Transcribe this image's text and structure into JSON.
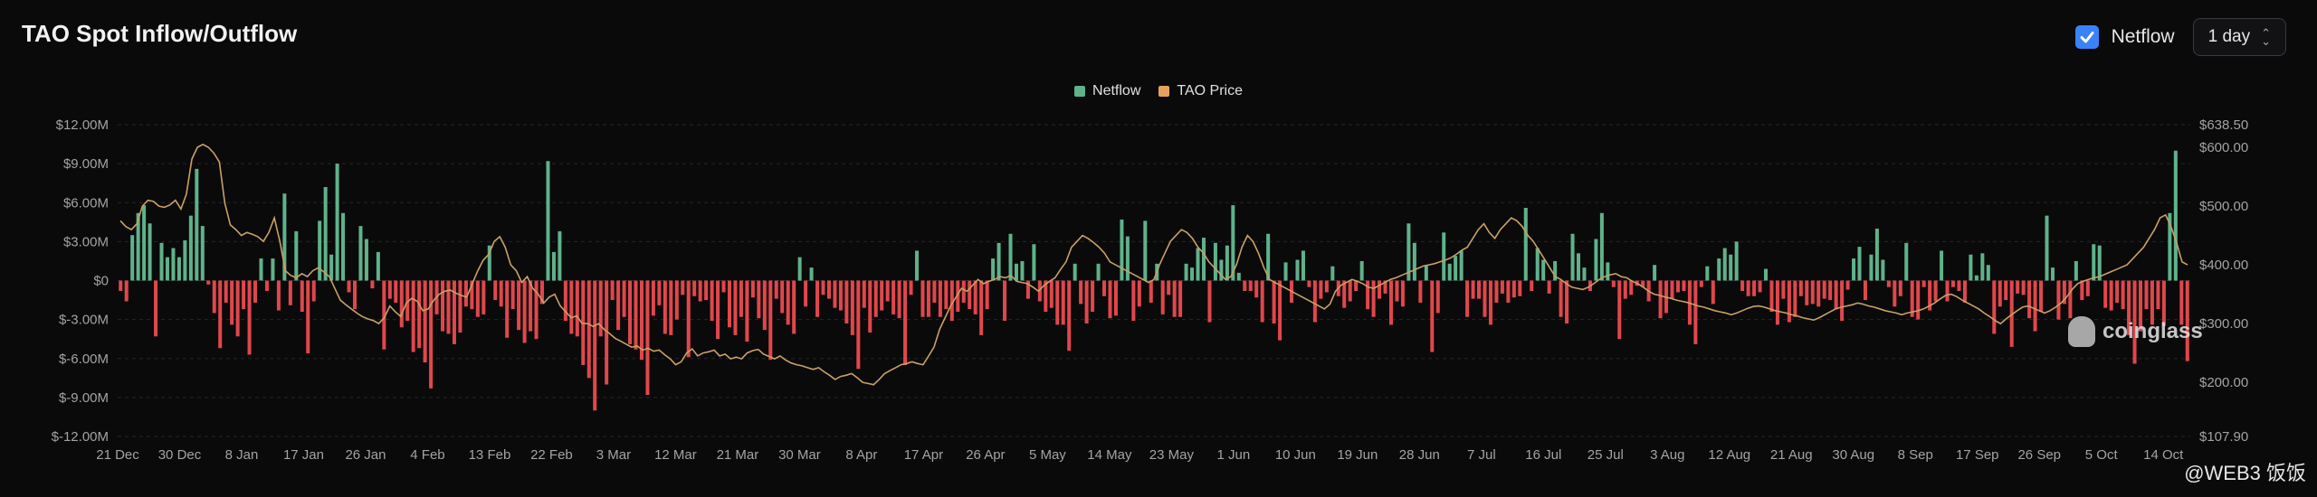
{
  "header": {
    "title": "TAO Spot Inflow/Outflow",
    "netflow_toggle_label": "Netflow",
    "interval_value": "1 day"
  },
  "legend": [
    {
      "label": "Netflow",
      "color": "#5fb28a"
    },
    {
      "label": "TAO Price",
      "color": "#e5a25c"
    }
  ],
  "colors": {
    "positive": "#5fb28a",
    "negative": "#e0474c",
    "price_line": "#c9a064",
    "grid": "#26262a",
    "axis_text": "#a3a3a3"
  },
  "watermark": "coinglass",
  "footer_tag": "@WEB3 饭饭",
  "chart_data": {
    "type": "bar",
    "title": "TAO Spot Inflow/Outflow",
    "y_left": {
      "label": "Netflow",
      "ticks": [
        "$12.00M",
        "$9.00M",
        "$6.00M",
        "$3.00M",
        "$0",
        "$-3.00M",
        "$-6.00M",
        "$-9.00M",
        "$-12.00M"
      ],
      "range": [
        -12,
        12
      ],
      "unit": "M USD"
    },
    "y_right": {
      "label": "TAO Price",
      "ticks": [
        "$638.50",
        "$600.00",
        "$500.00",
        "$400.00",
        "$300.00",
        "$200.00",
        "$107.90"
      ],
      "range": [
        107.9,
        638.5
      ]
    },
    "x_ticks": [
      "21 Dec",
      "30 Dec",
      "8 Jan",
      "17 Jan",
      "26 Jan",
      "4 Feb",
      "13 Feb",
      "22 Feb",
      "3 Mar",
      "12 Mar",
      "21 Mar",
      "30 Mar",
      "8 Apr",
      "17 Apr",
      "26 Apr",
      "5 May",
      "14 May",
      "23 May",
      "1 Jun",
      "10 Jun",
      "19 Jun",
      "28 Jun",
      "7 Jul",
      "16 Jul",
      "25 Jul",
      "3 Aug",
      "12 Aug",
      "21 Aug",
      "30 Aug",
      "8 Sep",
      "17 Sep",
      "26 Sep",
      "5 Oct",
      "14 Oct"
    ],
    "netflow": [
      -0.8,
      -1.6,
      3.5,
      5.2,
      5.8,
      4.4,
      -4.3,
      2.9,
      1.8,
      2.5,
      1.8,
      3.1,
      5.0,
      8.6,
      4.2,
      -0.3,
      -2.5,
      -5.2,
      -1.7,
      -3.4,
      -4.3,
      -2.2,
      -5.7,
      -1.7,
      1.7,
      -0.8,
      1.7,
      -2.3,
      6.7,
      -1.9,
      3.8,
      -2.4,
      -5.6,
      -1.6,
      4.6,
      7.2,
      2.0,
      9.0,
      5.2,
      -0.9,
      -2.2,
      4.2,
      3.2,
      -0.6,
      2.2,
      -5.3,
      -1.4,
      -1.7,
      -3.6,
      -3.1,
      -5.5,
      -5.2,
      -6.3,
      -8.3,
      -2.6,
      -3.9,
      -4.1,
      -4.9,
      -4.0,
      -2.0,
      -2.2,
      -2.8,
      -2.6,
      2.7,
      -1.5,
      -2.0,
      -4.4,
      -2.2,
      -3.8,
      -4.8,
      -3.9,
      -4.5,
      -1.8,
      9.2,
      2.2,
      3.8,
      -3.1,
      -4.1,
      -4.3,
      -6.5,
      -7.5,
      -10.0,
      -4.3,
      -8.0,
      -1.5,
      -3.8,
      -2.8,
      -4.9,
      -5.3,
      -6.1,
      -8.8,
      -2.7,
      -1.9,
      -4.1,
      -4.2,
      -3.0,
      -1.1,
      -5.9,
      -1.2,
      -1.6,
      -1.5,
      -3.1,
      -4.5,
      -0.9,
      -3.6,
      -4.2,
      -2.8,
      -4.7,
      -1.3,
      -2.9,
      -3.8,
      -6.1,
      -1.4,
      -2.5,
      -3.4,
      -4.1,
      1.8,
      -2.0,
      1.0,
      -2.8,
      -1.1,
      -1.4,
      -2.1,
      -2.3,
      -3.3,
      -4.2,
      -6.8,
      -2.1,
      -4.0,
      -2.8,
      -2.3,
      -1.6,
      -2.6,
      -2.9,
      -6.5,
      -1.1,
      2.3,
      -2.8,
      -2.8,
      -1.7,
      -2.8,
      -2.2,
      -3.1,
      -2.4,
      -1.7,
      -2.2,
      -2.6,
      -4.2,
      -2.2,
      1.7,
      2.9,
      -3.1,
      3.6,
      1.3,
      1.5,
      -1.4,
      2.8,
      -1.6,
      -2.4,
      -2.1,
      -3.4,
      -3.4,
      -5.4,
      1.3,
      -1.8,
      -3.3,
      -2.4,
      1.3,
      -1.2,
      -2.9,
      -2.7,
      4.7,
      3.4,
      -3.1,
      -2.0,
      4.6,
      -1.7,
      1.3,
      -2.6,
      -1.1,
      -2.8,
      -2.8,
      1.3,
      1.0,
      2.5,
      3.3,
      -3.2,
      2.9,
      1.6,
      2.7,
      5.8,
      0.6,
      -0.8,
      -0.8,
      -1.3,
      -3.2,
      3.6,
      -3.3,
      -4.6,
      1.4,
      -1.7,
      1.6,
      2.3,
      -0.5,
      -3.2,
      -1.4,
      -0.9,
      1.1,
      -1.2,
      -2.1,
      -1.6,
      -0.8,
      1.5,
      -2.2,
      -2.8,
      -1.4,
      -1.0,
      -3.4,
      -1.6,
      -2.0,
      4.4,
      2.9,
      -1.7,
      1.2,
      -5.5,
      -2.5,
      3.7,
      1.3,
      1.9,
      2.3,
      -2.8,
      -1.4,
      -1.4,
      -2.8,
      -3.4,
      -1.7,
      -1.0,
      -1.7,
      -1.3,
      -1.2,
      5.6,
      -0.8,
      2.5,
      1.6,
      -1.0,
      1.5,
      -2.8,
      -3.3,
      3.6,
      2.1,
      1.0,
      -0.8,
      3.2,
      5.2,
      1.4,
      -0.5,
      -4.5,
      -1.4,
      -1.1,
      -0.4,
      -0.5,
      -1.6,
      1.2,
      -2.9,
      -2.5,
      -1.4,
      -0.9,
      -0.8,
      -3.4,
      -4.9,
      -0.5,
      1.1,
      -1.8,
      1.7,
      2.5,
      2.0,
      3.0,
      -0.8,
      -1.2,
      -1.2,
      -0.9,
      0.9,
      -2.4,
      -3.4,
      -1.4,
      -3.2,
      -2.8,
      -1.2,
      -1.9,
      -1.8,
      -2.0,
      -1.4,
      -1.5,
      -2.2,
      -3.1,
      -0.7,
      1.7,
      2.6,
      -1.5,
      2.0,
      4.0,
      1.6,
      -0.5,
      -2.0,
      -1.2,
      2.9,
      -2.8,
      -3.0,
      -0.5,
      -2.3,
      -1.6,
      2.3,
      -1.6,
      -0.5,
      -0.8,
      -1.7,
      2.0,
      0.4,
      2.1,
      1.2,
      -4.1,
      -2.0,
      -1.5,
      -5.1,
      -1.0,
      -1.1,
      -2.9,
      -3.9,
      -2.4,
      5.0,
      1.0,
      -3.0,
      -1.8,
      -2.9,
      1.5,
      -1.5,
      -1.2,
      2.8,
      2.7,
      -2.1,
      -2.3,
      -1.7,
      -2.2,
      -4.2,
      -6.4,
      -3.9,
      -2.2,
      -3.4,
      -2.2,
      -3.5,
      5.2,
      10.0,
      -3.4,
      -6.2
    ],
    "tao_price": [
      475,
      465,
      460,
      470,
      500,
      510,
      508,
      500,
      498,
      502,
      510,
      495,
      520,
      580,
      600,
      605,
      600,
      590,
      575,
      505,
      468,
      460,
      450,
      455,
      452,
      448,
      440,
      455,
      480,
      440,
      390,
      382,
      378,
      385,
      380,
      390,
      395,
      388,
      380,
      360,
      340,
      332,
      325,
      318,
      312,
      308,
      305,
      300,
      310,
      330,
      320,
      312,
      335,
      343,
      338,
      322,
      325,
      340,
      350,
      355,
      357,
      352,
      348,
      345,
      368,
      390,
      408,
      418,
      440,
      448,
      430,
      400,
      390,
      370,
      380,
      360,
      350,
      335,
      345,
      350,
      330,
      320,
      310,
      313,
      300,
      300,
      295,
      300,
      290,
      283,
      275,
      270,
      265,
      260,
      262,
      255,
      258,
      253,
      255,
      247,
      240,
      230,
      235,
      250,
      257,
      245,
      250,
      252,
      255,
      245,
      248,
      240,
      243,
      240,
      250,
      254,
      256,
      248,
      244,
      240,
      245,
      238,
      233,
      230,
      228,
      225,
      222,
      225,
      218,
      212,
      205,
      210,
      212,
      215,
      208,
      200,
      198,
      196,
      205,
      215,
      220,
      225,
      230,
      232,
      235,
      232,
      230,
      245,
      260,
      290,
      310,
      330,
      345,
      360,
      355,
      365,
      375,
      368,
      372,
      375,
      380,
      378,
      382,
      372,
      370,
      368,
      362,
      355,
      365,
      372,
      378,
      392,
      405,
      430,
      440,
      450,
      445,
      438,
      430,
      420,
      405,
      400,
      395,
      390,
      385,
      380,
      375,
      370,
      375,
      400,
      420,
      440,
      450,
      460,
      455,
      445,
      430,
      420,
      405,
      395,
      385,
      375,
      380,
      400,
      430,
      450,
      440,
      420,
      395,
      375,
      370,
      365,
      360,
      355,
      350,
      345,
      340,
      335,
      330,
      325,
      333,
      355,
      365,
      370,
      375,
      372,
      368,
      362,
      360,
      365,
      370,
      375,
      378,
      382,
      386,
      390,
      394,
      398,
      400,
      402,
      405,
      408,
      412,
      418,
      425,
      430,
      445,
      460,
      470,
      455,
      445,
      460,
      470,
      480,
      475,
      465,
      450,
      440,
      425,
      410,
      395,
      380,
      375,
      368,
      362,
      360,
      358,
      362,
      368,
      375,
      380,
      383,
      385,
      380,
      378,
      372,
      368,
      362,
      355,
      350,
      348,
      345,
      343,
      340,
      338,
      336,
      333,
      330,
      328,
      325,
      322,
      320,
      318,
      315,
      318,
      322,
      326,
      329,
      330,
      328,
      325,
      322,
      320,
      318,
      315,
      313,
      310,
      308,
      306,
      310,
      315,
      320,
      325,
      328,
      330,
      332,
      335,
      333,
      330,
      328,
      325,
      322,
      320,
      318,
      315,
      318,
      320,
      322,
      325,
      330,
      335,
      342,
      348,
      350,
      346,
      340,
      335,
      330,
      325,
      318,
      312,
      305,
      300,
      308,
      315,
      322,
      328,
      330,
      326,
      322,
      318,
      322,
      328,
      335,
      345,
      358,
      368,
      372,
      375,
      378,
      380,
      384,
      388,
      392,
      396,
      400,
      410,
      420,
      430,
      445,
      460,
      480,
      485,
      465,
      438,
      405,
      400
    ]
  }
}
